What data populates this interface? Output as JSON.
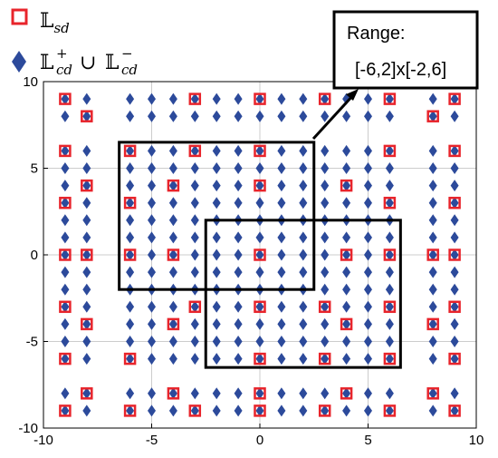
{
  "chart_data": {
    "type": "scatter",
    "xlim": [
      -10,
      10
    ],
    "ylim": [
      -10,
      10
    ],
    "x_ticks": [
      -10,
      -5,
      0,
      5,
      10
    ],
    "y_ticks": [
      -10,
      -5,
      0,
      5,
      10
    ],
    "grid": true,
    "legend_position": "top-left",
    "colors": {
      "sd": "#e8242b",
      "cd": "#2c4a9b"
    },
    "legend": {
      "sd": {
        "main": "𝕃",
        "sub": "sd",
        "sup": ""
      },
      "cd": {
        "main": "𝕃",
        "sup": "+",
        "sub": "cd",
        "joiner": "∪",
        "main2": "𝕃",
        "sup2": "−",
        "sub2": "cd"
      }
    },
    "annotation": {
      "line1": "Range:",
      "line2": "[-6,2]x[-2,6]"
    },
    "rect_a": {
      "x": [
        -6.5,
        2.5
      ],
      "y": [
        -2,
        6.5
      ]
    },
    "rect_b": {
      "x": [
        -2.5,
        6.5
      ],
      "y": [
        -6.5,
        2
      ]
    },
    "series": [
      {
        "name": "Lsd",
        "marker": "open-square",
        "points": [
          [
            -9,
            9
          ],
          [
            -3,
            9
          ],
          [
            0,
            9
          ],
          [
            3,
            9
          ],
          [
            6,
            9
          ],
          [
            9,
            9
          ],
          [
            -8,
            8
          ],
          [
            8,
            8
          ],
          [
            -9,
            6
          ],
          [
            -6,
            6
          ],
          [
            -3,
            6
          ],
          [
            0,
            6
          ],
          [
            6,
            6
          ],
          [
            9,
            6
          ],
          [
            -8,
            4
          ],
          [
            -4,
            4
          ],
          [
            0,
            4
          ],
          [
            4,
            4
          ],
          [
            -9,
            3
          ],
          [
            -6,
            3
          ],
          [
            6,
            3
          ],
          [
            9,
            3
          ],
          [
            -9,
            0
          ],
          [
            -8,
            0
          ],
          [
            -6,
            0
          ],
          [
            -4,
            0
          ],
          [
            0,
            0
          ],
          [
            4,
            0
          ],
          [
            6,
            0
          ],
          [
            8,
            0
          ],
          [
            9,
            0
          ],
          [
            -9,
            -3
          ],
          [
            -3,
            -3
          ],
          [
            0,
            -3
          ],
          [
            3,
            -3
          ],
          [
            6,
            -3
          ],
          [
            9,
            -3
          ],
          [
            -8,
            -4
          ],
          [
            -4,
            -4
          ],
          [
            4,
            -4
          ],
          [
            8,
            -4
          ],
          [
            -9,
            -6
          ],
          [
            -6,
            -6
          ],
          [
            0,
            -6
          ],
          [
            3,
            -6
          ],
          [
            6,
            -6
          ],
          [
            9,
            -6
          ],
          [
            -8,
            -8
          ],
          [
            -4,
            -8
          ],
          [
            0,
            -8
          ],
          [
            4,
            -8
          ],
          [
            8,
            -8
          ],
          [
            -9,
            -9
          ],
          [
            -6,
            -9
          ],
          [
            -3,
            -9
          ],
          [
            0,
            -9
          ],
          [
            3,
            -9
          ],
          [
            6,
            -9
          ],
          [
            9,
            -9
          ]
        ]
      },
      {
        "name": "Lcd",
        "marker": "diamond",
        "rows": [
          {
            "y": 9,
            "x": [
              -9,
              -8,
              -6,
              -5,
              -4,
              -3,
              -2,
              -1,
              0,
              1,
              2,
              3,
              4,
              5,
              6,
              8,
              9
            ]
          },
          {
            "y": 8,
            "x": [
              -9,
              -8,
              -6,
              -5,
              -4,
              -3,
              -2,
              -1,
              0,
              1,
              2,
              3,
              4,
              5,
              6,
              8,
              9
            ]
          },
          {
            "y": 6,
            "x": [
              -9,
              -8,
              -6,
              -5,
              -4,
              -3,
              -2,
              -1,
              0,
              1,
              2,
              3,
              4,
              5,
              6,
              8,
              9
            ]
          },
          {
            "y": 5,
            "x": [
              -9,
              -8,
              -6,
              -5,
              -4,
              -3,
              -2,
              -1,
              0,
              1,
              2,
              3,
              4,
              5,
              6,
              8,
              9
            ]
          },
          {
            "y": 4,
            "x": [
              -9,
              -8,
              -6,
              -5,
              -4,
              -3,
              -2,
              -1,
              0,
              1,
              2,
              3,
              4,
              5,
              6,
              8,
              9
            ]
          },
          {
            "y": 3,
            "x": [
              -9,
              -8,
              -6,
              -5,
              -4,
              -3,
              -2,
              -1,
              0,
              1,
              2,
              3,
              4,
              5,
              6,
              8,
              9
            ]
          },
          {
            "y": 2,
            "x": [
              -9,
              -8,
              -6,
              -5,
              -4,
              -3,
              -2,
              -1,
              0,
              1,
              2,
              3,
              4,
              5,
              6,
              8,
              9
            ]
          },
          {
            "y": 1,
            "x": [
              -9,
              -8,
              -6,
              -5,
              -4,
              -3,
              -2,
              -1,
              0,
              1,
              2,
              3,
              4,
              5,
              6,
              8,
              9
            ]
          },
          {
            "y": 0,
            "x": [
              -9,
              -8,
              -6,
              -5,
              -4,
              -3,
              -2,
              -1,
              0,
              1,
              2,
              3,
              4,
              5,
              6,
              8,
              9
            ]
          },
          {
            "y": -1,
            "x": [
              -9,
              -8,
              -6,
              -5,
              -4,
              -3,
              -2,
              -1,
              0,
              1,
              2,
              3,
              4,
              5,
              6,
              8,
              9
            ]
          },
          {
            "y": -2,
            "x": [
              -9,
              -8,
              -6,
              -5,
              -4,
              -3,
              -2,
              -1,
              0,
              1,
              2,
              3,
              4,
              5,
              6,
              8,
              9
            ]
          },
          {
            "y": -3,
            "x": [
              -9,
              -8,
              -6,
              -5,
              -4,
              -3,
              -2,
              -1,
              0,
              1,
              2,
              3,
              4,
              5,
              6,
              8,
              9
            ]
          },
          {
            "y": -4,
            "x": [
              -9,
              -8,
              -6,
              -5,
              -4,
              -3,
              -2,
              -1,
              0,
              1,
              2,
              3,
              4,
              5,
              6,
              8,
              9
            ]
          },
          {
            "y": -5,
            "x": [
              -9,
              -8,
              -6,
              -5,
              -4,
              -3,
              -2,
              -1,
              0,
              1,
              2,
              3,
              4,
              5,
              6,
              8,
              9
            ]
          },
          {
            "y": -6,
            "x": [
              -9,
              -8,
              -6,
              -5,
              -4,
              -3,
              -2,
              -1,
              0,
              1,
              2,
              3,
              4,
              5,
              6,
              8,
              9
            ]
          },
          {
            "y": -8,
            "x": [
              -9,
              -8,
              -6,
              -5,
              -4,
              -3,
              -2,
              -1,
              0,
              1,
              2,
              3,
              4,
              5,
              6,
              8,
              9
            ]
          },
          {
            "y": -9,
            "x": [
              -9,
              -8,
              -6,
              -5,
              -4,
              -3,
              -2,
              -1,
              0,
              1,
              2,
              3,
              4,
              5,
              6,
              8,
              9
            ]
          }
        ]
      }
    ]
  }
}
